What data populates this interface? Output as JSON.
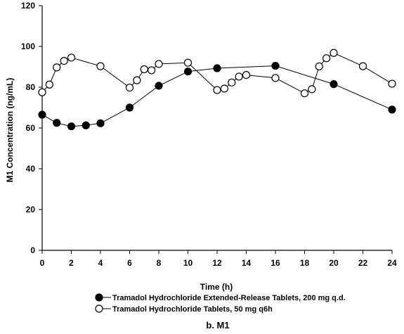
{
  "chart_data": {
    "type": "line",
    "caption": "b. M1",
    "xlabel": "Time (h)",
    "ylabel": "M1 Concentration (ng/mL)",
    "xlim": [
      0,
      24
    ],
    "ylim": [
      0,
      120
    ],
    "xticks": [
      0,
      2,
      4,
      6,
      8,
      10,
      12,
      14,
      16,
      18,
      20,
      22,
      24
    ],
    "yticks": [
      0,
      20,
      40,
      60,
      80,
      100,
      120
    ],
    "grid": false,
    "legend_position": "bottom",
    "series": [
      {
        "name": "Tramadol Hydrochloride Extended-Release Tablets, 200 mg q.d.",
        "marker": "filled-circle",
        "color": "#000000",
        "x": [
          0,
          1,
          2,
          3,
          4,
          6,
          8,
          10,
          12,
          16,
          20,
          24
        ],
        "y": [
          66.5,
          62.5,
          60.8,
          61.3,
          62.3,
          70.0,
          80.7,
          87.7,
          89.3,
          90.5,
          81.5,
          69.0
        ]
      },
      {
        "name": "Tramadol Hydrochloride Tablets, 50 mg q6h",
        "marker": "open-circle",
        "color": "#000000",
        "x": [
          0,
          0.5,
          1,
          1.5,
          2,
          4,
          6,
          6.5,
          7,
          7.5,
          8,
          10,
          12,
          12.5,
          13,
          13.5,
          14,
          16,
          18,
          18.5,
          19,
          19.5,
          20,
          22,
          24
        ],
        "y": [
          77.5,
          81.3,
          89.7,
          92.9,
          94.5,
          90.3,
          79.8,
          83.4,
          88.8,
          88.3,
          91.4,
          92.0,
          78.6,
          79.3,
          82.3,
          85.2,
          86.0,
          84.5,
          77.0,
          79.0,
          90.2,
          94.2,
          96.8,
          90.3,
          81.7
        ]
      }
    ]
  }
}
